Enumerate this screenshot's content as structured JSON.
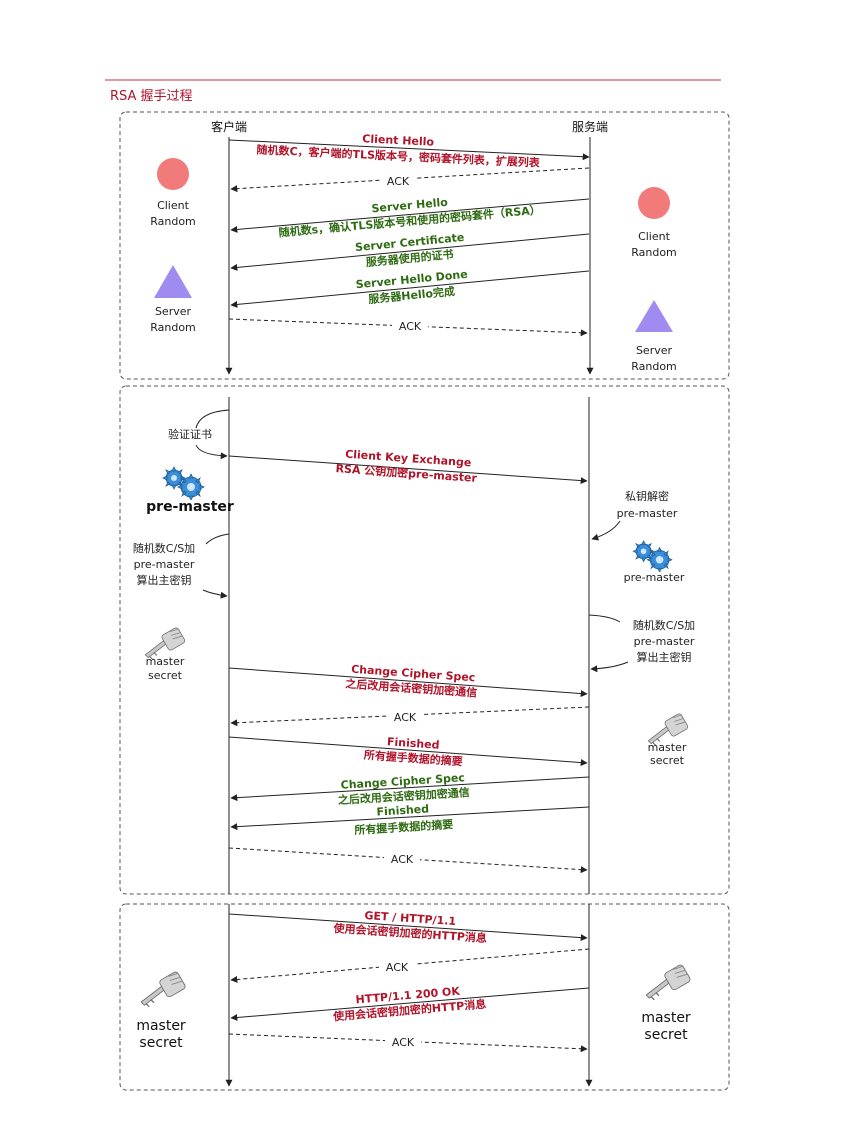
{
  "title": "RSA 握手过程",
  "client_label": "客户端",
  "server_label": "服务端",
  "phase1": {
    "client_random": [
      "Client",
      "Random"
    ],
    "server_random_client_side": [
      "Server",
      "Random"
    ],
    "client_random_server_side": [
      "Client",
      "Random"
    ],
    "server_random_server_side": [
      "Server",
      "Random"
    ],
    "msg_client_hello": "Client Hello",
    "msg_client_hello_detail": "随机数C，客户端的TLS版本号，密码套件列表，扩展列表",
    "ack1": "ACK",
    "msg_server_hello": "Server Hello",
    "msg_server_hello_detail": "随机数s，确认TLS版本号和使用的密码套件（RSA）",
    "msg_server_cert": "Server Certificate",
    "msg_server_cert_detail": "服务器使用的证书",
    "msg_server_done": "Server Hello Done",
    "msg_server_done_detail": "服务器Hello完成",
    "ack2": "ACK"
  },
  "phase2": {
    "verify_cert": "验证证书",
    "pre_master_client": "pre-master",
    "msg_cke": "Client Key Exchange",
    "msg_cke_detail": "RSA 公钥加密pre-master",
    "decrypt_line1": "私钥解密",
    "decrypt_line2": "pre-master",
    "pre_master_server": "pre-master",
    "calc_client": [
      "随机数C/S加",
      "pre-master",
      "算出主密钥"
    ],
    "calc_server": [
      "随机数C/S加",
      "pre-master",
      "算出主密钥"
    ],
    "master_client": [
      "master",
      "secret"
    ],
    "master_server": [
      "master",
      "secret"
    ],
    "msg_ccs_client": "Change Cipher Spec",
    "msg_ccs_client_detail": "之后改用会话密钥加密通信",
    "ack3": "ACK",
    "msg_fin_client": "Finished",
    "msg_fin_client_detail": "所有握手数据的摘要",
    "msg_ccs_server": "Change Cipher Spec",
    "msg_ccs_server_detail": "之后改用会话密钥加密通信",
    "msg_fin_server": "Finished",
    "msg_fin_server_detail": "所有握手数据的摘要",
    "ack4": "ACK"
  },
  "phase3": {
    "msg_get": "GET / HTTP/1.1",
    "msg_get_detail": "使用会话密钥加密的HTTP消息",
    "ack5": "ACK",
    "msg_resp": "HTTP/1.1 200 OK",
    "msg_resp_detail": "使用会话密钥加密的HTTP消息",
    "ack6": "ACK",
    "master_client": [
      "master",
      "secret"
    ],
    "master_server": [
      "master",
      "secret"
    ]
  },
  "colors": {
    "accent_red": "#b0142a",
    "green": "#2e6b12",
    "circle": "#f17b7b",
    "triangle": "#a08cf0",
    "gear": "#3a8fd8",
    "rule": "#c9333f"
  }
}
